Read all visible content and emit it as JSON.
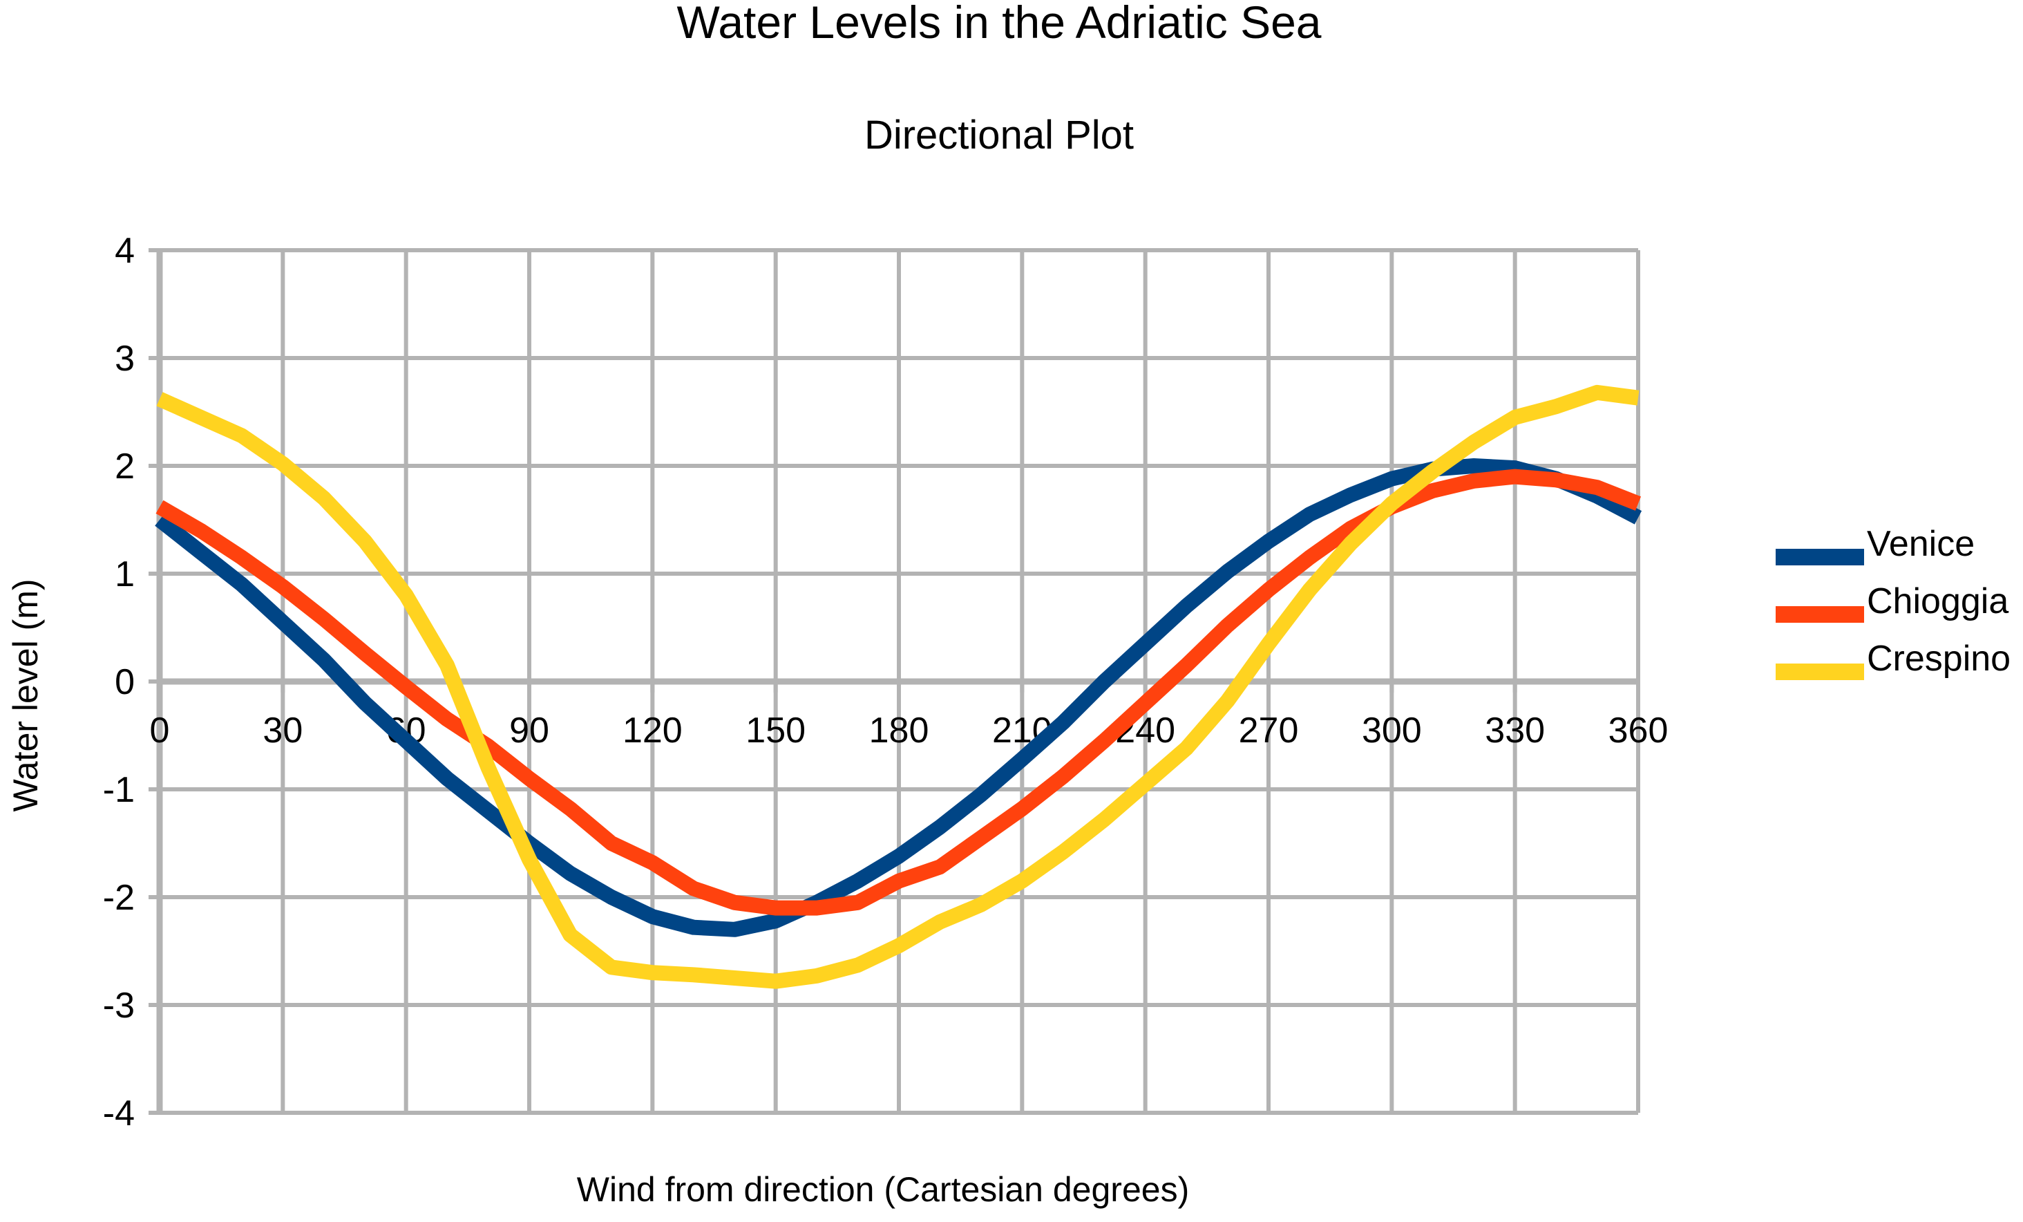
{
  "chart_data": {
    "type": "line",
    "title": "Water Levels in the Adriatic Sea",
    "subtitle": "Directional Plot",
    "xlabel": "Wind from direction (Cartesian degrees)",
    "ylabel": "Water level (m)",
    "xlim": [
      0,
      360
    ],
    "ylim": [
      -4,
      4
    ],
    "xticks": [
      0,
      30,
      60,
      90,
      120,
      150,
      180,
      210,
      240,
      270,
      300,
      330,
      360
    ],
    "yticks": [
      4,
      3,
      2,
      1,
      0,
      -1,
      -2,
      -3,
      -4
    ],
    "xtick_labels": [
      "0",
      "30",
      "60",
      "90",
      "120",
      "150",
      "180",
      "210",
      "240",
      "270",
      "300",
      "330",
      "360"
    ],
    "ytick_labels": [
      "4",
      "3",
      "2",
      "1",
      "0",
      "-1",
      "-2",
      "-3",
      "-4"
    ],
    "grid": true,
    "legend_position": "right",
    "x": [
      0,
      10,
      20,
      30,
      40,
      50,
      60,
      70,
      80,
      90,
      100,
      110,
      120,
      130,
      140,
      150,
      160,
      170,
      180,
      190,
      200,
      210,
      220,
      230,
      240,
      250,
      260,
      270,
      280,
      290,
      300,
      310,
      320,
      330,
      340,
      350,
      360
    ],
    "series": [
      {
        "name": "Venice",
        "color": "#004586",
        "values": [
          1.5,
          1.2,
          0.9,
          0.55,
          0.2,
          -0.2,
          -0.55,
          -0.9,
          -1.2,
          -1.5,
          -1.78,
          -2.0,
          -2.18,
          -2.28,
          -2.3,
          -2.22,
          -2.05,
          -1.85,
          -1.62,
          -1.35,
          -1.05,
          -0.72,
          -0.38,
          0.0,
          0.35,
          0.7,
          1.02,
          1.3,
          1.55,
          1.73,
          1.88,
          1.97,
          2.0,
          1.98,
          1.88,
          1.72,
          1.52
        ]
      },
      {
        "name": "Chioggia",
        "color": "#FF420E",
        "values": [
          1.62,
          1.4,
          1.15,
          0.88,
          0.58,
          0.26,
          -0.05,
          -0.35,
          -0.6,
          -0.9,
          -1.18,
          -1.5,
          -1.68,
          -1.92,
          -2.05,
          -2.1,
          -2.1,
          -2.05,
          -1.85,
          -1.72,
          -1.45,
          -1.18,
          -0.88,
          -0.55,
          -0.2,
          0.15,
          0.52,
          0.85,
          1.15,
          1.42,
          1.62,
          1.77,
          1.86,
          1.9,
          1.87,
          1.8,
          1.65
        ]
      },
      {
        "name": "Crespino",
        "color": "#FFD320",
        "values": [
          2.62,
          2.45,
          2.28,
          2.02,
          1.7,
          1.3,
          0.8,
          0.15,
          -0.8,
          -1.65,
          -2.35,
          -2.65,
          -2.7,
          -2.72,
          -2.75,
          -2.78,
          -2.73,
          -2.63,
          -2.45,
          -2.23,
          -2.07,
          -1.85,
          -1.58,
          -1.28,
          -0.95,
          -0.62,
          -0.18,
          0.35,
          0.85,
          1.28,
          1.65,
          1.95,
          2.22,
          2.45,
          2.55,
          2.68,
          2.63
        ]
      }
    ]
  }
}
